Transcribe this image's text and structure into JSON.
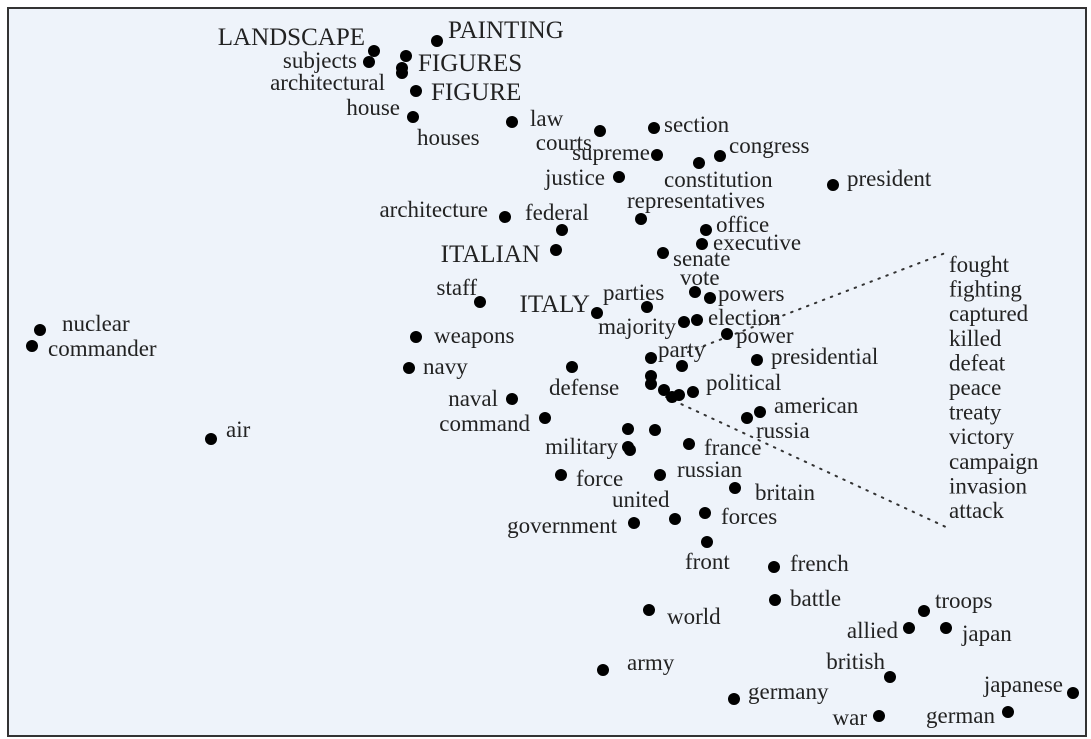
{
  "chart_data": {
    "type": "scatter",
    "title": "",
    "xlabel": "",
    "ylabel": "",
    "axes_visible": false,
    "grid": false,
    "xlim": [
      0,
      109.1
    ],
    "ylim": [
      0,
      73.9
    ],
    "colors": {
      "background": "#eef3fa",
      "point": "#000000",
      "frame": "#333333"
    },
    "points": [
      {
        "label": "LANDSCAPE",
        "x": 37.4,
        "y": 68.8
      },
      {
        "label": "subjects",
        "x": 36.9,
        "y": 67.7
      },
      {
        "label": "PAINTING",
        "x": 43.7,
        "y": 69.8
      },
      {
        "label": "FIGURES",
        "x": 40.6,
        "y": 68.3
      },
      {
        "label": "",
        "x": 40.2,
        "y": 67.1
      },
      {
        "label": "architectural",
        "x": 40.2,
        "y": 66.6
      },
      {
        "label": "FIGURE",
        "x": 41.6,
        "y": 64.8
      },
      {
        "label": "house",
        "x": 41.3,
        "y": 62.2
      },
      {
        "label": "houses",
        "x": 41.3,
        "y": 62.2
      },
      {
        "label": "law",
        "x": 51.2,
        "y": 61.7
      },
      {
        "label": "courts",
        "x": 60.0,
        "y": 60.8
      },
      {
        "label": "section",
        "x": 65.4,
        "y": 61.1
      },
      {
        "label": "supreme",
        "x": 65.7,
        "y": 58.4
      },
      {
        "label": "congress",
        "x": 72.0,
        "y": 58.3
      },
      {
        "label": "constitution",
        "x": 69.9,
        "y": 57.6
      },
      {
        "label": "justice",
        "x": 61.9,
        "y": 56.2
      },
      {
        "label": "president",
        "x": 83.3,
        "y": 55.4
      },
      {
        "label": "representatives",
        "x": 64.1,
        "y": 52.0
      },
      {
        "label": "architecture",
        "x": 50.5,
        "y": 52.2
      },
      {
        "label": "federal",
        "x": 56.2,
        "y": 50.9
      },
      {
        "label": "office",
        "x": 70.6,
        "y": 50.9
      },
      {
        "label": "executive",
        "x": 70.2,
        "y": 49.5
      },
      {
        "label": "ITALIAN",
        "x": 55.6,
        "y": 48.9
      },
      {
        "label": "senate",
        "x": 66.3,
        "y": 48.6
      },
      {
        "label": "vote",
        "x": 69.5,
        "y": 44.7
      },
      {
        "label": "powers",
        "x": 71.0,
        "y": 44.1
      },
      {
        "label": "staff",
        "x": 48.0,
        "y": 43.7
      },
      {
        "label": "ITALY",
        "x": 59.7,
        "y": 42.6
      },
      {
        "label": "parties",
        "x": 64.7,
        "y": 43.2
      },
      {
        "label": "majority",
        "x": 68.4,
        "y": 41.7
      },
      {
        "label": "election",
        "x": 69.7,
        "y": 41.9
      },
      {
        "label": "power",
        "x": 72.7,
        "y": 40.5
      },
      {
        "label": "weapons",
        "x": 41.6,
        "y": 40.2
      },
      {
        "label": "nuclear",
        "x": 4.0,
        "y": 40.9
      },
      {
        "label": "commander",
        "x": 3.2,
        "y": 39.3
      },
      {
        "label": "party",
        "x": 65.1,
        "y": 38.1
      },
      {
        "label": "",
        "x": 68.2,
        "y": 37.3
      },
      {
        "label": "presidential",
        "x": 75.7,
        "y": 37.9
      },
      {
        "label": "navy",
        "x": 40.9,
        "y": 37.1
      },
      {
        "label": "",
        "x": 57.2,
        "y": 37.2
      },
      {
        "label": "defense",
        "x": 65.1,
        "y": 36.3
      },
      {
        "label": "",
        "x": 65.1,
        "y": 35.5
      },
      {
        "label": "political",
        "x": 69.3,
        "y": 34.7
      },
      {
        "label": "",
        "x": 66.4,
        "y": 34.9
      },
      {
        "label": "",
        "x": 67.9,
        "y": 34.4
      },
      {
        "label": "",
        "x": 67.2,
        "y": 34.2
      },
      {
        "label": "naval",
        "x": 51.2,
        "y": 34.0
      },
      {
        "label": "american",
        "x": 76.0,
        "y": 32.7
      },
      {
        "label": "russia",
        "x": 74.7,
        "y": 32.1
      },
      {
        "label": "air",
        "x": 21.1,
        "y": 30.0
      },
      {
        "label": "command",
        "x": 54.5,
        "y": 32.1
      },
      {
        "label": "",
        "x": 62.8,
        "y": 31.0
      },
      {
        "label": "",
        "x": 65.5,
        "y": 30.9
      },
      {
        "label": "military",
        "x": 62.8,
        "y": 29.2
      },
      {
        "label": "",
        "x": 63.0,
        "y": 28.9
      },
      {
        "label": "france",
        "x": 68.9,
        "y": 29.5
      },
      {
        "label": "force",
        "x": 56.1,
        "y": 26.4
      },
      {
        "label": "russian",
        "x": 66.0,
        "y": 26.4
      },
      {
        "label": "britain",
        "x": 73.5,
        "y": 25.1
      },
      {
        "label": "united",
        "x": 67.5,
        "y": 22.0
      },
      {
        "label": "forces",
        "x": 70.5,
        "y": 22.6
      },
      {
        "label": "government",
        "x": 63.4,
        "y": 21.6
      },
      {
        "label": "front",
        "x": 70.7,
        "y": 19.7
      },
      {
        "label": "french",
        "x": 77.4,
        "y": 17.2
      },
      {
        "label": "battle",
        "x": 77.5,
        "y": 13.9
      },
      {
        "label": "troops",
        "x": 92.4,
        "y": 12.8
      },
      {
        "label": "allied",
        "x": 90.9,
        "y": 11.1
      },
      {
        "label": "japan",
        "x": 94.6,
        "y": 11.1
      },
      {
        "label": "world",
        "x": 64.9,
        "y": 12.9
      },
      {
        "label": "army",
        "x": 60.3,
        "y": 6.9
      },
      {
        "label": "british",
        "x": 89.0,
        "y": 6.2
      },
      {
        "label": "germany",
        "x": 73.4,
        "y": 4.0
      },
      {
        "label": "japanese",
        "x": 107.3,
        "y": 4.6
      },
      {
        "label": "war",
        "x": 87.9,
        "y": 2.3
      },
      {
        "label": "german",
        "x": 100.8,
        "y": 2.7
      }
    ],
    "callout_list": [
      "fought",
      "fighting",
      "captured",
      "killed",
      "defeat",
      "peace",
      "treaty",
      "victory",
      "campaign",
      "invasion",
      "attack"
    ]
  }
}
